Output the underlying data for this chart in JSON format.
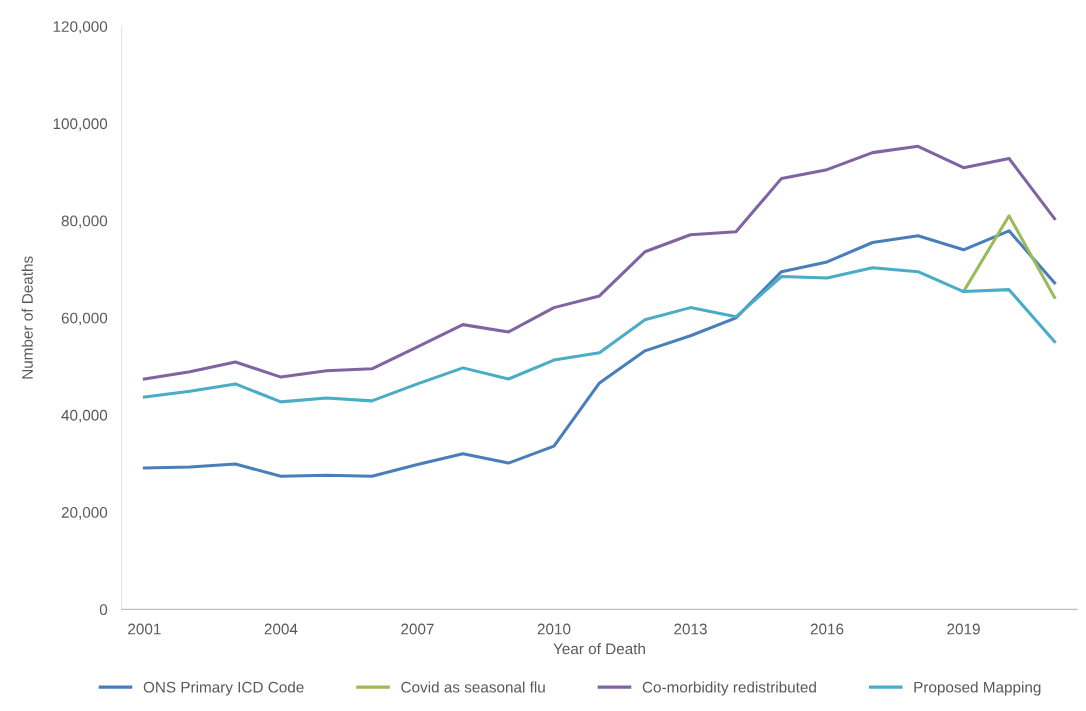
{
  "chart_data": {
    "type": "line",
    "xlabel": "Year of Death",
    "ylabel": "Number of Deaths",
    "x": [
      2001,
      2002,
      2003,
      2004,
      2005,
      2006,
      2007,
      2008,
      2009,
      2010,
      2011,
      2012,
      2013,
      2014,
      2015,
      2016,
      2017,
      2018,
      2019,
      2020,
      2021
    ],
    "series": [
      {
        "name": "ONS Primary ICD Code",
        "color": "#4a7ebb",
        "values": [
          29100,
          29300,
          29900,
          27400,
          27600,
          27400,
          29800,
          32000,
          30100,
          33600,
          46600,
          53200,
          56300,
          60000,
          69500,
          71500,
          75500,
          76900,
          74000,
          77900,
          67200
        ]
      },
      {
        "name": "Covid as seasonal flu",
        "color": "#9bbb59",
        "values": [
          null,
          null,
          null,
          null,
          null,
          null,
          null,
          null,
          null,
          null,
          null,
          null,
          null,
          null,
          null,
          null,
          null,
          null,
          65400,
          81000,
          64200
        ]
      },
      {
        "name": "Co-morbidity redistributed",
        "color": "#8064a2",
        "values": [
          47400,
          48900,
          50900,
          47800,
          49100,
          49500,
          54000,
          58600,
          57100,
          62100,
          64500,
          73600,
          77100,
          77700,
          88700,
          90500,
          94000,
          95300,
          90900,
          92800,
          80400
        ]
      },
      {
        "name": "Proposed Mapping",
        "color": "#4bacc6",
        "values": [
          43700,
          44900,
          46400,
          42700,
          43500,
          42900,
          46400,
          49700,
          47400,
          51300,
          52800,
          59600,
          62100,
          60200,
          68500,
          68200,
          70300,
          69500,
          65400,
          65800,
          55100
        ]
      }
    ],
    "xlim": [
      2000.5,
      2021.5
    ],
    "xticks": [
      2001,
      2004,
      2007,
      2010,
      2013,
      2016,
      2019
    ],
    "ylim": [
      0,
      120000
    ],
    "yticks": [
      {
        "value": 0,
        "label": "0"
      },
      {
        "value": 20000,
        "label": "20,000"
      },
      {
        "value": 40000,
        "label": "40,000"
      },
      {
        "value": 60000,
        "label": "60,000"
      },
      {
        "value": 80000,
        "label": "80,000"
      },
      {
        "value": 100000,
        "label": "100,000"
      },
      {
        "value": 120000,
        "label": "120,000"
      }
    ],
    "legend": "bottom",
    "marker": "none",
    "line_style": "solid"
  }
}
